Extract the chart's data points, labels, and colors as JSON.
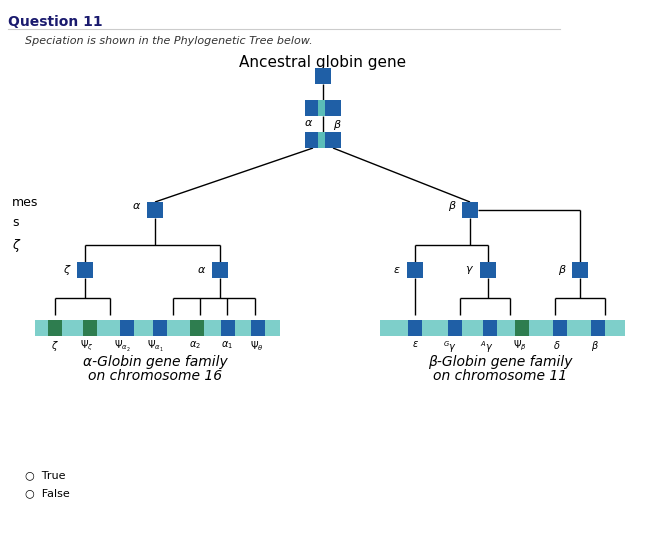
{
  "title": "Question 11",
  "subtitle": "    Speciation is shown in the Phylogenetic Tree below.",
  "tree_title": "Ancestral globin gene",
  "colors": {
    "dark_blue": "#1F5FA6",
    "teal": "#5BBDB8",
    "dark_green": "#2E7D4F",
    "light_teal": "#7ECFCA",
    "bg": "#ffffff",
    "header_line": "#aaaaaa",
    "title_color": "#1a3a6e"
  },
  "alpha_label_line1": "α-Globin gene family",
  "alpha_label_line2": "on chromosome 16",
  "beta_label_line1": "β-Globin gene family",
  "beta_label_line2": "on chromosome 11",
  "true_false": [
    "True",
    "False"
  ],
  "alpha_bar_label_strs": [
    "$\\zeta$",
    "$\\Psi_\\zeta$",
    "$\\Psi_{\\alpha_2}$",
    "$\\Psi_{\\alpha_1}$",
    "$\\alpha_2$",
    "$\\alpha_1$",
    "$\\Psi_\\theta$"
  ],
  "beta_bar_label_strs": [
    "$\\varepsilon$",
    "$^G\\gamma$",
    "$^A\\gamma$",
    "$\\Psi_\\beta$",
    "$\\delta$",
    "$\\beta$"
  ]
}
